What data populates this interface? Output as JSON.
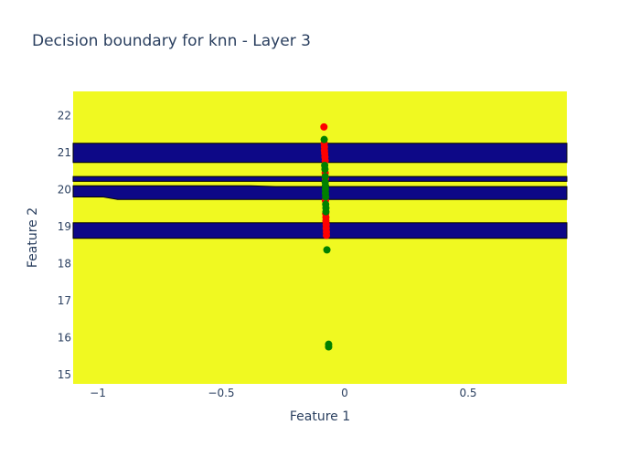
{
  "chart_data": {
    "type": "heatmap",
    "title": "Decision boundary for knn - Layer 3",
    "xlabel": "Feature 1",
    "ylabel": "Feature 2",
    "xlim": [
      -1.1,
      0.9
    ],
    "ylim": [
      14.75,
      22.65
    ],
    "x_ticks": [
      {
        "value": -1,
        "label": "−1"
      },
      {
        "value": -0.5,
        "label": "−0.5"
      },
      {
        "value": 0,
        "label": "0"
      },
      {
        "value": 0.5,
        "label": "0.5"
      }
    ],
    "y_ticks": [
      {
        "value": 15,
        "label": "15"
      },
      {
        "value": 16,
        "label": "16"
      },
      {
        "value": 17,
        "label": "17"
      },
      {
        "value": 18,
        "label": "18"
      },
      {
        "value": 19,
        "label": "19"
      },
      {
        "value": 20,
        "label": "20"
      },
      {
        "value": 21,
        "label": "21"
      },
      {
        "value": 22,
        "label": "22"
      }
    ],
    "grid": false,
    "legend": "none",
    "background_class_color": "#f0f921",
    "boundary_class_color": "#0d0887",
    "regions": [
      {
        "class": 0,
        "y_bottom": 20.73,
        "y_top": 21.25
      },
      {
        "class": 0,
        "y_bottom": 20.22,
        "y_top": 20.35
      },
      {
        "class": 0,
        "y_bottom": 19.73,
        "y_top": 20.08,
        "y_top_left": 20.1,
        "y_bottom_left": 19.8
      },
      {
        "class": 0,
        "y_bottom": 18.68,
        "y_top": 19.1
      }
    ],
    "series": [
      {
        "color": "#ff0000",
        "points": [
          [
            -0.084,
            21.69
          ],
          [
            -0.083,
            21.25
          ],
          [
            -0.082,
            21.15
          ],
          [
            -0.082,
            21.05
          ],
          [
            -0.081,
            20.97
          ],
          [
            -0.08,
            20.88
          ],
          [
            -0.079,
            20.78
          ],
          [
            -0.079,
            20.45
          ],
          [
            -0.078,
            20.3
          ],
          [
            -0.078,
            19.7
          ],
          [
            -0.077,
            19.35
          ],
          [
            -0.076,
            19.25
          ],
          [
            -0.076,
            19.15
          ],
          [
            -0.075,
            19.05
          ],
          [
            -0.075,
            18.95
          ],
          [
            -0.074,
            18.85
          ],
          [
            -0.074,
            18.76
          ]
        ]
      },
      {
        "color": "#008000",
        "points": [
          [
            -0.083,
            21.35
          ],
          [
            -0.081,
            20.65
          ],
          [
            -0.08,
            20.55
          ],
          [
            -0.079,
            20.35
          ],
          [
            -0.079,
            20.2
          ],
          [
            -0.078,
            20.1
          ],
          [
            -0.078,
            20.0
          ],
          [
            -0.078,
            19.9
          ],
          [
            -0.077,
            19.8
          ],
          [
            -0.077,
            19.6
          ],
          [
            -0.076,
            19.5
          ],
          [
            -0.076,
            19.4
          ],
          [
            -0.072,
            18.37
          ],
          [
            -0.065,
            15.82
          ],
          [
            -0.065,
            15.75
          ]
        ]
      }
    ]
  }
}
